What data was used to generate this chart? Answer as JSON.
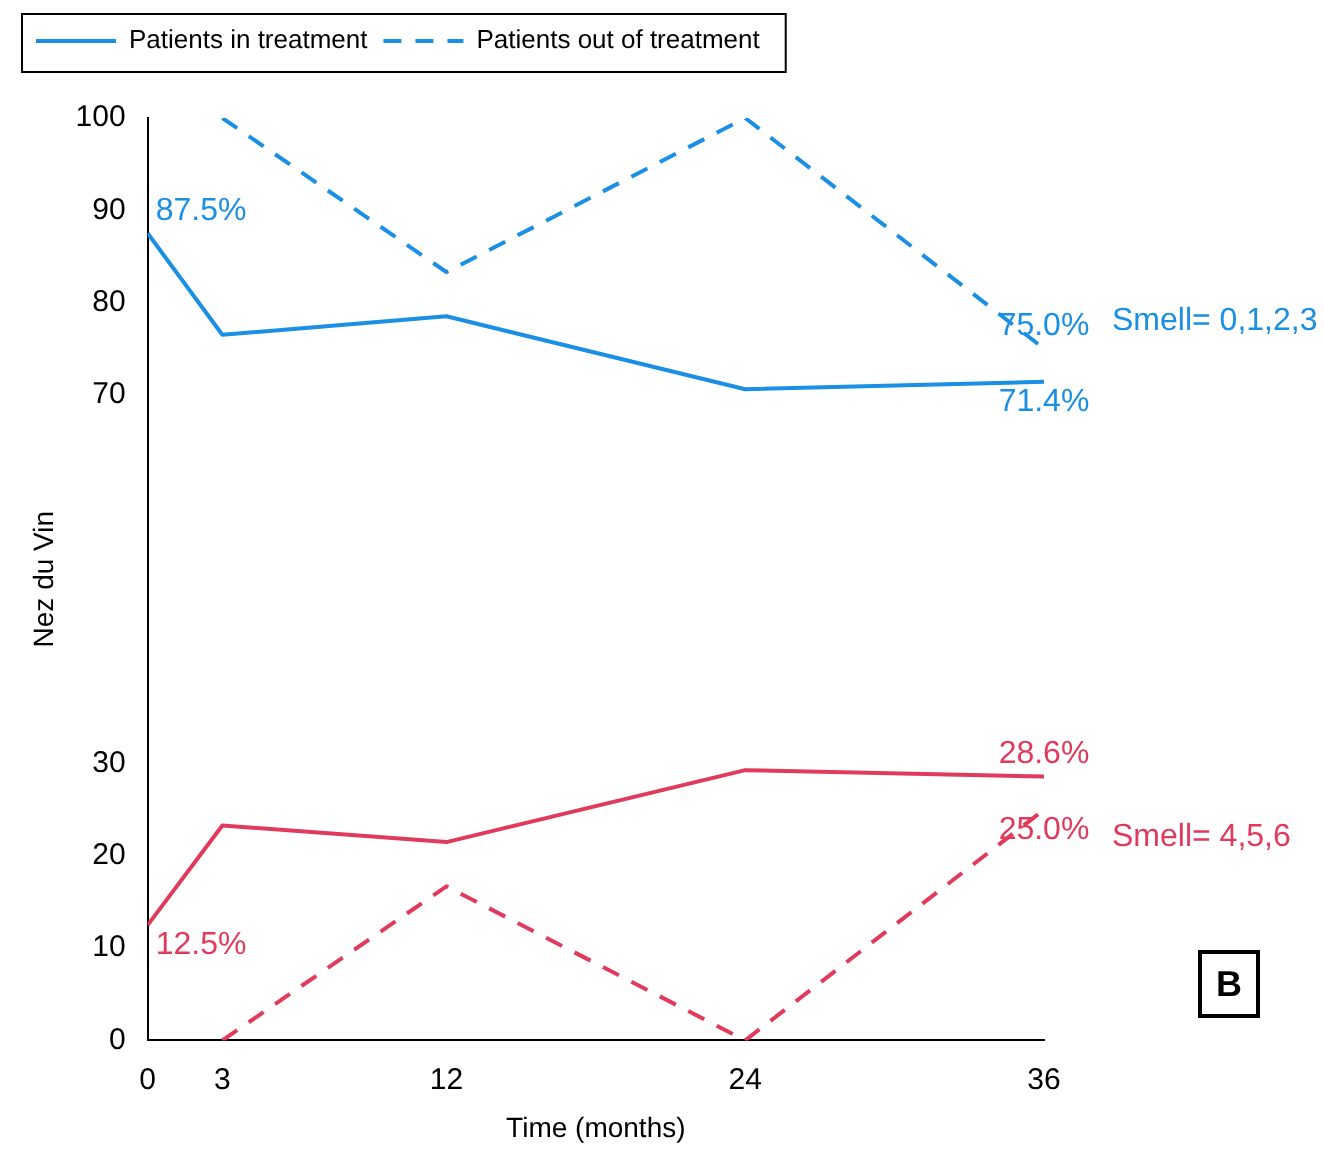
{
  "chart_data": {
    "type": "line",
    "xlabel": "Time (months)",
    "ylabel": "Nez du Vin",
    "x": [
      0,
      3,
      12,
      24,
      36
    ],
    "xlim": [
      0,
      36
    ],
    "xticks": [
      0,
      3,
      12,
      24,
      36
    ],
    "ylim": [
      0,
      100
    ],
    "yticks": [
      0,
      10,
      20,
      30,
      70,
      80,
      90,
      100
    ],
    "series": [
      {
        "name": "Patients in treatment",
        "color": "#1a8fe3",
        "line_style": "solid",
        "values": [
          87.5,
          76.5,
          78.5,
          70.6,
          71.4
        ],
        "value_labels": [
          "87.5%",
          null,
          null,
          null,
          "71.4%"
        ]
      },
      {
        "name": "Patients out of treatment",
        "color": "#1a8fe3",
        "line_style": "dashed",
        "values": [
          null,
          100,
          83.3,
          100,
          75.0
        ],
        "value_labels": [
          null,
          null,
          null,
          null,
          "75.0%"
        ]
      },
      {
        "color": "#e03a5c",
        "line_style": "solid",
        "values": [
          12.5,
          23.3,
          21.5,
          29.3,
          28.6
        ],
        "value_labels": [
          "12.5%",
          null,
          null,
          null,
          "28.6%"
        ]
      },
      {
        "color": "#e03a5c",
        "line_style": "dashed",
        "values": [
          null,
          0,
          16.7,
          0,
          25.0
        ],
        "value_labels": [
          null,
          null,
          null,
          null,
          "25.0%"
        ]
      }
    ],
    "annotations": [
      "Smell= 0,1,2,3",
      "Smell= 4,5,6",
      "B"
    ],
    "marker": "none",
    "grid": false,
    "legend": "top left"
  }
}
